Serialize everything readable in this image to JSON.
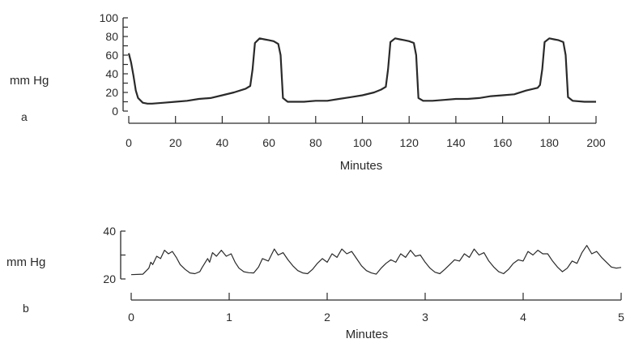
{
  "chart_data": [
    {
      "panel_label": "a",
      "type": "line",
      "ylabel": "mm Hg",
      "xlabel": "Minutes",
      "ylim": [
        0,
        100
      ],
      "xlim": [
        0,
        200
      ],
      "yticks": [
        0,
        10,
        20,
        30,
        40,
        50,
        60,
        70,
        80,
        90,
        100
      ],
      "ytick_labels": [
        "0",
        "20",
        "40",
        "60",
        "80",
        "100"
      ],
      "ytick_label_values": [
        0,
        20,
        40,
        60,
        80,
        100
      ],
      "xtick_labels": [
        "0",
        "20",
        "40",
        "60",
        "80",
        "100",
        "120",
        "140",
        "160",
        "180",
        "200"
      ],
      "xtick_values": [
        0,
        20,
        40,
        60,
        80,
        100,
        120,
        140,
        160,
        180,
        200
      ],
      "grid": false,
      "series": [
        {
          "values_x": [
            0,
            1,
            2,
            3,
            4,
            6,
            8,
            10,
            15,
            20,
            25,
            30,
            35,
            40,
            45,
            50,
            52,
            53,
            54,
            56,
            58,
            60,
            62,
            64,
            65,
            66,
            68,
            70,
            75,
            80,
            85,
            90,
            95,
            100,
            105,
            108,
            110,
            111,
            112,
            114,
            116,
            118,
            120,
            122,
            123,
            124,
            126,
            130,
            135,
            140,
            145,
            150,
            155,
            160,
            165,
            170,
            175,
            176,
            177,
            178,
            180,
            182,
            184,
            186,
            187,
            188,
            190,
            195,
            200
          ],
          "values_y": [
            62,
            52,
            38,
            22,
            14,
            9,
            8,
            8,
            9,
            10,
            11,
            13,
            14,
            17,
            20,
            24,
            27,
            45,
            73,
            78,
            77,
            76,
            75,
            72,
            60,
            14,
            10,
            10,
            10,
            11,
            11,
            13,
            15,
            17,
            20,
            23,
            26,
            45,
            74,
            78,
            77,
            76,
            75,
            73,
            60,
            14,
            11,
            11,
            12,
            13,
            13,
            14,
            16,
            17,
            18,
            22,
            25,
            28,
            45,
            74,
            78,
            77,
            76,
            74,
            60,
            15,
            11,
            10,
            10
          ]
        }
      ]
    },
    {
      "panel_label": "b",
      "type": "line",
      "ylabel": "mm Hg",
      "xlabel": "Minutes",
      "ylim": [
        20,
        40
      ],
      "xlim": [
        0,
        5
      ],
      "yticks": [
        20,
        30,
        40
      ],
      "ytick_labels": [
        "20",
        "",
        "40"
      ],
      "xtick_labels": [
        "0",
        "1",
        "2",
        "3",
        "4",
        "5"
      ],
      "xtick_values": [
        0,
        1,
        2,
        3,
        4,
        5
      ],
      "grid": false,
      "series": [
        {
          "values_x": [
            0.0,
            0.12,
            0.18,
            0.2,
            0.22,
            0.26,
            0.3,
            0.34,
            0.38,
            0.42,
            0.46,
            0.5,
            0.55,
            0.6,
            0.65,
            0.7,
            0.72,
            0.78,
            0.8,
            0.83,
            0.87,
            0.92,
            0.97,
            1.02,
            1.06,
            1.1,
            1.15,
            1.2,
            1.25,
            1.3,
            1.34,
            1.4,
            1.46,
            1.5,
            1.55,
            1.6,
            1.65,
            1.7,
            1.75,
            1.8,
            1.85,
            1.9,
            1.95,
            2.0,
            2.05,
            2.1,
            2.15,
            2.2,
            2.25,
            2.3,
            2.35,
            2.4,
            2.45,
            2.5,
            2.55,
            2.6,
            2.65,
            2.7,
            2.75,
            2.8,
            2.85,
            2.9,
            2.95,
            3.0,
            3.05,
            3.1,
            3.15,
            3.2,
            3.25,
            3.3,
            3.35,
            3.4,
            3.45,
            3.5,
            3.55,
            3.6,
            3.65,
            3.7,
            3.75,
            3.8,
            3.85,
            3.9,
            3.95,
            4.0,
            4.05,
            4.1,
            4.15,
            4.2,
            4.25,
            4.3,
            4.35,
            4.4,
            4.45,
            4.5,
            4.55,
            4.6,
            4.65,
            4.7,
            4.75,
            4.8,
            4.85,
            4.9,
            4.95,
            5.0
          ],
          "values_y": [
            21.8,
            22.0,
            24.5,
            27.0,
            26.0,
            29.5,
            28.5,
            32.0,
            30.5,
            31.5,
            29.0,
            26.0,
            24.0,
            22.5,
            22.2,
            23.0,
            24.5,
            28.5,
            27.0,
            31.0,
            29.5,
            32.0,
            29.5,
            30.5,
            27.0,
            24.5,
            23.0,
            22.6,
            22.5,
            25.0,
            28.5,
            27.5,
            32.5,
            30.0,
            31.0,
            28.0,
            25.5,
            23.5,
            22.5,
            22.2,
            24.0,
            26.5,
            28.5,
            27.0,
            30.5,
            29.0,
            32.5,
            30.5,
            31.5,
            28.5,
            25.5,
            23.5,
            22.5,
            22.0,
            24.5,
            26.5,
            28.0,
            27.0,
            30.5,
            29.0,
            32.0,
            29.5,
            30.0,
            27.0,
            24.5,
            22.8,
            22.2,
            24.0,
            26.0,
            28.0,
            27.5,
            30.5,
            29.0,
            32.5,
            30.0,
            31.0,
            27.5,
            25.0,
            23.0,
            22.2,
            24.0,
            26.5,
            28.0,
            27.5,
            31.5,
            30.0,
            32.0,
            30.5,
            30.5,
            27.5,
            25.0,
            23.0,
            24.5,
            27.5,
            26.5,
            31.0,
            34.0,
            30.5,
            31.5,
            29.0,
            27.0,
            25.0,
            24.5,
            24.8
          ]
        }
      ]
    }
  ]
}
